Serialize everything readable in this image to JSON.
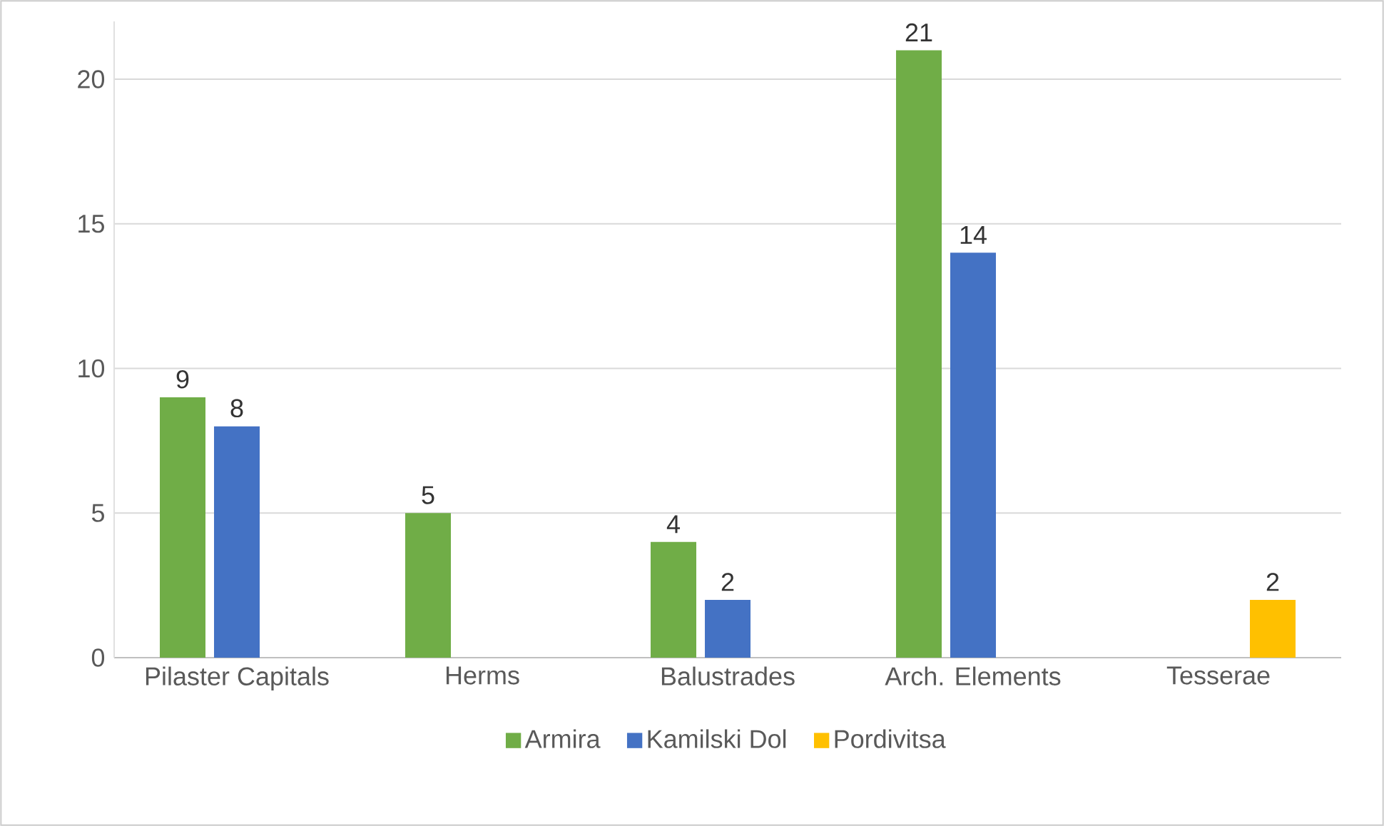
{
  "chart_data": {
    "type": "bar",
    "categories": [
      "Pilaster Capitals",
      "Herms",
      "Balustrades",
      "Arch. Elements",
      "Tesserae"
    ],
    "series": [
      {
        "name": "Armira",
        "color": "#70ad47",
        "values": [
          9,
          5,
          4,
          21,
          null
        ]
      },
      {
        "name": "Kamilski Dol",
        "color": "#4472c4",
        "values": [
          8,
          null,
          2,
          14,
          null
        ]
      },
      {
        "name": "Pordivitsa",
        "color": "#ffc000",
        "values": [
          null,
          null,
          null,
          null,
          2
        ]
      }
    ],
    "ylim": [
      0,
      22
    ],
    "yticks": [
      0,
      5,
      10,
      15,
      20
    ],
    "grid": "y",
    "legend": "bottom",
    "data_labels": true
  }
}
